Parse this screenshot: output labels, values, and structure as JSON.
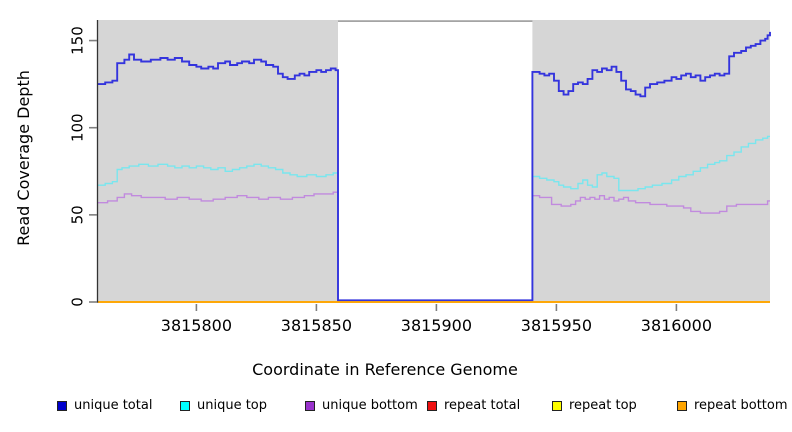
{
  "chart_data": {
    "type": "line",
    "subtype": "step-coverage",
    "title": "",
    "xlabel": "Coordinate in Reference Genome",
    "ylabel": "Read Coverage Depth",
    "xlim": [
      3815759,
      3816039
    ],
    "ylim": [
      0,
      161.8
    ],
    "x_ticks": [
      3815800,
      3815850,
      3815900,
      3815950,
      3816000
    ],
    "x_tick_labels": [
      "3815800",
      "3815850",
      "3815900",
      "3815950",
      "3816000"
    ],
    "y_ticks": [
      0,
      50,
      100,
      150
    ],
    "y_tick_labels": [
      "0",
      "50",
      "100",
      "150"
    ],
    "grid": false,
    "panel_background": "#d6d6d6",
    "gap_region": {
      "start": 3815859,
      "end": 3815940,
      "fill": "#ffffff",
      "top_border_color": "#999999"
    },
    "axis_color": "#333333",
    "tick_color": "#7f7f7f",
    "legend_position": "bottom",
    "legend_order": [
      "unique total",
      "unique top",
      "unique bottom",
      "repeat total",
      "repeat top",
      "repeat bottom"
    ],
    "draw_order": [
      "repeat total",
      "repeat top",
      "unique bottom",
      "unique top",
      "unique total",
      "repeat bottom"
    ],
    "series": [
      {
        "name": "unique total",
        "line_color": "#3434dd",
        "legend_color": "#0000cc",
        "line_width": 1.9,
        "points": [
          [
            3815759,
            125
          ],
          [
            3815762,
            126
          ],
          [
            3815765,
            127
          ],
          [
            3815767,
            137
          ],
          [
            3815770,
            139
          ],
          [
            3815772,
            142
          ],
          [
            3815774,
            139
          ],
          [
            3815777,
            138
          ],
          [
            3815781,
            139
          ],
          [
            3815785,
            140
          ],
          [
            3815788,
            139
          ],
          [
            3815791,
            140
          ],
          [
            3815794,
            138
          ],
          [
            3815797,
            136
          ],
          [
            3815800,
            135
          ],
          [
            3815802,
            134
          ],
          [
            3815805,
            135
          ],
          [
            3815807,
            134
          ],
          [
            3815809,
            137
          ],
          [
            3815812,
            138
          ],
          [
            3815814,
            136
          ],
          [
            3815817,
            137
          ],
          [
            3815819,
            138
          ],
          [
            3815822,
            137
          ],
          [
            3815824,
            139
          ],
          [
            3815827,
            138
          ],
          [
            3815829,
            136
          ],
          [
            3815832,
            135
          ],
          [
            3815834,
            131
          ],
          [
            3815836,
            129
          ],
          [
            3815838,
            128
          ],
          [
            3815841,
            130
          ],
          [
            3815843,
            131
          ],
          [
            3815845,
            130
          ],
          [
            3815847,
            132
          ],
          [
            3815850,
            133
          ],
          [
            3815852,
            132
          ],
          [
            3815854,
            133
          ],
          [
            3815856,
            134
          ],
          [
            3815858,
            133
          ],
          [
            3815859,
            1
          ],
          [
            3815940,
            132
          ],
          [
            3815943,
            131
          ],
          [
            3815945,
            130
          ],
          [
            3815947,
            131
          ],
          [
            3815949,
            127
          ],
          [
            3815951,
            121
          ],
          [
            3815953,
            119
          ],
          [
            3815955,
            121
          ],
          [
            3815957,
            125
          ],
          [
            3815959,
            126
          ],
          [
            3815961,
            125
          ],
          [
            3815963,
            128
          ],
          [
            3815965,
            133
          ],
          [
            3815967,
            132
          ],
          [
            3815969,
            134
          ],
          [
            3815971,
            133
          ],
          [
            3815973,
            135
          ],
          [
            3815975,
            132
          ],
          [
            3815977,
            127
          ],
          [
            3815979,
            122
          ],
          [
            3815981,
            121
          ],
          [
            3815983,
            119
          ],
          [
            3815985,
            118
          ],
          [
            3815987,
            123
          ],
          [
            3815989,
            125
          ],
          [
            3815992,
            126
          ],
          [
            3815995,
            127
          ],
          [
            3815998,
            129
          ],
          [
            3816000,
            128
          ],
          [
            3816002,
            130
          ],
          [
            3816004,
            131
          ],
          [
            3816006,
            129
          ],
          [
            3816008,
            130
          ],
          [
            3816010,
            127
          ],
          [
            3816012,
            129
          ],
          [
            3816014,
            130
          ],
          [
            3816016,
            131
          ],
          [
            3816018,
            130
          ],
          [
            3816020,
            131
          ],
          [
            3816022,
            141
          ],
          [
            3816024,
            143
          ],
          [
            3816027,
            144
          ],
          [
            3816029,
            146
          ],
          [
            3816031,
            147
          ],
          [
            3816033,
            148
          ],
          [
            3816035,
            150
          ],
          [
            3816037,
            151
          ],
          [
            3816038,
            153
          ],
          [
            3816039,
            155
          ]
        ]
      },
      {
        "name": "unique top",
        "line_color": "#79e6ee",
        "legend_color": "#00ffff",
        "line_width": 1.4,
        "points": [
          [
            3815759,
            67
          ],
          [
            3815762,
            68
          ],
          [
            3815765,
            69
          ],
          [
            3815767,
            76
          ],
          [
            3815769,
            77
          ],
          [
            3815772,
            78
          ],
          [
            3815776,
            79
          ],
          [
            3815780,
            78
          ],
          [
            3815784,
            79
          ],
          [
            3815788,
            78
          ],
          [
            3815791,
            77
          ],
          [
            3815794,
            78
          ],
          [
            3815797,
            77
          ],
          [
            3815800,
            78
          ],
          [
            3815803,
            77
          ],
          [
            3815806,
            76
          ],
          [
            3815809,
            77
          ],
          [
            3815812,
            75
          ],
          [
            3815815,
            76
          ],
          [
            3815818,
            77
          ],
          [
            3815821,
            78
          ],
          [
            3815824,
            79
          ],
          [
            3815827,
            78
          ],
          [
            3815830,
            77
          ],
          [
            3815833,
            76
          ],
          [
            3815836,
            74
          ],
          [
            3815839,
            73
          ],
          [
            3815842,
            72
          ],
          [
            3815846,
            73
          ],
          [
            3815850,
            72
          ],
          [
            3815854,
            73
          ],
          [
            3815857,
            74
          ],
          [
            3815859,
            1
          ],
          [
            3815940,
            72
          ],
          [
            3815943,
            71
          ],
          [
            3815946,
            70
          ],
          [
            3815949,
            69
          ],
          [
            3815951,
            67
          ],
          [
            3815953,
            66
          ],
          [
            3815956,
            65
          ],
          [
            3815959,
            68
          ],
          [
            3815961,
            70
          ],
          [
            3815963,
            67
          ],
          [
            3815965,
            66
          ],
          [
            3815967,
            73
          ],
          [
            3815969,
            74
          ],
          [
            3815971,
            72
          ],
          [
            3815974,
            71
          ],
          [
            3815976,
            64
          ],
          [
            3815980,
            64
          ],
          [
            3815984,
            65
          ],
          [
            3815987,
            66
          ],
          [
            3815990,
            67
          ],
          [
            3815994,
            68
          ],
          [
            3815998,
            70
          ],
          [
            3816001,
            72
          ],
          [
            3816004,
            73
          ],
          [
            3816007,
            75
          ],
          [
            3816010,
            77
          ],
          [
            3816013,
            79
          ],
          [
            3816016,
            80
          ],
          [
            3816018,
            81
          ],
          [
            3816021,
            84
          ],
          [
            3816024,
            86
          ],
          [
            3816027,
            89
          ],
          [
            3816030,
            91
          ],
          [
            3816033,
            93
          ],
          [
            3816036,
            94
          ],
          [
            3816038,
            95
          ]
        ]
      },
      {
        "name": "unique bottom",
        "line_color": "#c18ade",
        "legend_color": "#9932cc",
        "line_width": 1.4,
        "points": [
          [
            3815759,
            57
          ],
          [
            3815763,
            58
          ],
          [
            3815767,
            60
          ],
          [
            3815770,
            62
          ],
          [
            3815773,
            61
          ],
          [
            3815777,
            60
          ],
          [
            3815782,
            60
          ],
          [
            3815787,
            59
          ],
          [
            3815792,
            60
          ],
          [
            3815797,
            59
          ],
          [
            3815802,
            58
          ],
          [
            3815807,
            59
          ],
          [
            3815812,
            60
          ],
          [
            3815817,
            61
          ],
          [
            3815821,
            60
          ],
          [
            3815826,
            59
          ],
          [
            3815830,
            60
          ],
          [
            3815835,
            59
          ],
          [
            3815840,
            60
          ],
          [
            3815845,
            61
          ],
          [
            3815849,
            62
          ],
          [
            3815854,
            62
          ],
          [
            3815857,
            63
          ],
          [
            3815859,
            1
          ],
          [
            3815940,
            61
          ],
          [
            3815943,
            60
          ],
          [
            3815946,
            60
          ],
          [
            3815948,
            56
          ],
          [
            3815952,
            55
          ],
          [
            3815956,
            56
          ],
          [
            3815958,
            58
          ],
          [
            3815960,
            60
          ],
          [
            3815962,
            59
          ],
          [
            3815964,
            60
          ],
          [
            3815966,
            59
          ],
          [
            3815968,
            61
          ],
          [
            3815970,
            59
          ],
          [
            3815972,
            60
          ],
          [
            3815974,
            58
          ],
          [
            3815976,
            59
          ],
          [
            3815978,
            60
          ],
          [
            3815980,
            58
          ],
          [
            3815983,
            57
          ],
          [
            3815986,
            57
          ],
          [
            3815989,
            56
          ],
          [
            3815993,
            56
          ],
          [
            3815996,
            55
          ],
          [
            3816000,
            55
          ],
          [
            3816003,
            54
          ],
          [
            3816006,
            52
          ],
          [
            3816010,
            51
          ],
          [
            3816014,
            51
          ],
          [
            3816018,
            52
          ],
          [
            3816021,
            55
          ],
          [
            3816025,
            56
          ],
          [
            3816030,
            56
          ],
          [
            3816035,
            56
          ],
          [
            3816038,
            58
          ]
        ]
      },
      {
        "name": "repeat total",
        "line_color": "#ee1111",
        "legend_color": "#ee1111",
        "line_width": 1.4,
        "points": [
          [
            3815759,
            0
          ]
        ]
      },
      {
        "name": "repeat top",
        "line_color": "#ffff00",
        "legend_color": "#ffff00",
        "line_width": 1.4,
        "points": [
          [
            3815759,
            0
          ]
        ]
      },
      {
        "name": "repeat bottom",
        "line_color": "#ffa500",
        "legend_color": "#ffa500",
        "line_width": 1.7,
        "points": [
          [
            3815759,
            0
          ]
        ]
      }
    ]
  }
}
